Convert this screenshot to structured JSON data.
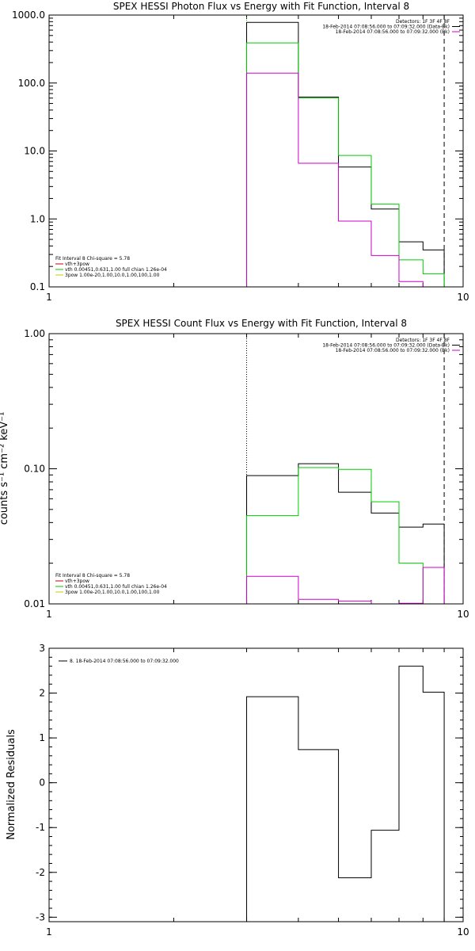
{
  "chart_data": [
    {
      "type": "step",
      "title": "SPEX HESSI Photon Flux vs Energy with Fit Function, Interval 8",
      "xlabel": "",
      "ylabel": "",
      "xscale": "log",
      "yscale": "log",
      "xlim": [
        1,
        10
      ],
      "ylim": [
        0.1,
        1000
      ],
      "xticks": [
        {
          "v": 1,
          "label": "1"
        },
        {
          "v": 10,
          "label": "10"
        }
      ],
      "yticks": [
        {
          "v": 0.1,
          "label": "0.1"
        },
        {
          "v": 1,
          "label": "1.0"
        },
        {
          "v": 10,
          "label": "10.0"
        },
        {
          "v": 100,
          "label": "100.0"
        },
        {
          "v": 1000,
          "label": "1000.0"
        }
      ],
      "vlines": [
        {
          "x": 3.0,
          "style": "dotted",
          "color": "#00cc00"
        },
        {
          "x": 9.0,
          "style": "dashed",
          "color": "#000000"
        }
      ],
      "legend_topright": {
        "detectors": "Detectors: 1F 3F 4F 8F",
        "entries": [
          {
            "text": "18-Feb-2014 07:08:56.000 to 07:09:32.000 (Data-Bk)",
            "color": "#000000"
          },
          {
            "text": "18-Feb-2014 07:08:56.000 to 07:09:32.000 (Bk)",
            "color": "#cc00cc"
          }
        ]
      },
      "legend_bottomleft": {
        "header": "Fit Interval 8   Chi-square = 5.78",
        "entries": [
          {
            "text": "vth+3pow",
            "color": "#cc0000"
          },
          {
            "text": "vth 0.00451,0.631,1.00   full chian 1.26e-04",
            "color": "#00cc00"
          },
          {
            "text": "3pow 1.00e-20,1.00,10.0,1.00,100,1.00",
            "color": "#cccc00"
          }
        ]
      },
      "edges": [
        3,
        4,
        5,
        6,
        7,
        8,
        9
      ],
      "series": [
        {
          "name": "Data-Bk",
          "color": "#000000",
          "values": [
            780,
            62,
            5.8,
            1.4,
            0.46,
            0.35
          ]
        },
        {
          "name": "vth",
          "color": "#00cc00",
          "values": [
            390,
            60,
            8.6,
            1.65,
            0.25,
            0.155
          ]
        },
        {
          "name": "Bk",
          "color": "#cc00cc",
          "values": [
            140,
            6.6,
            0.93,
            0.29,
            0.12,
            0.1
          ]
        }
      ]
    },
    {
      "type": "step",
      "title": "SPEX HESSI Count Flux vs Energy with Fit Function, Interval 8",
      "xlabel": "",
      "ylabel": "counts s⁻¹ cm⁻² keV⁻¹",
      "xscale": "log",
      "yscale": "log",
      "xlim": [
        1,
        10
      ],
      "ylim": [
        0.01,
        1
      ],
      "xticks": [
        {
          "v": 1,
          "label": "1"
        },
        {
          "v": 10,
          "label": "10"
        }
      ],
      "yticks": [
        {
          "v": 0.01,
          "label": "0.01"
        },
        {
          "v": 0.1,
          "label": "0.10"
        },
        {
          "v": 1,
          "label": "1.00"
        }
      ],
      "vlines": [
        {
          "x": 3.0,
          "style": "dotted",
          "color": "#000000"
        },
        {
          "x": 9.0,
          "style": "dashed",
          "color": "#000000"
        }
      ],
      "legend_topright": {
        "detectors": "Detectors: 1F 3F 4F 8F",
        "entries": [
          {
            "text": "18-Feb-2014 07:08:56.000 to 07:09:32.000 (Data-Bk)",
            "color": "#000000"
          },
          {
            "text": "18-Feb-2014 07:08:56.000 to 07:09:32.000 (Bk)",
            "color": "#cc00cc"
          }
        ]
      },
      "legend_bottomleft": {
        "header": "Fit Interval 8   Chi-square = 5.78",
        "entries": [
          {
            "text": "vth+3pow",
            "color": "#cc0000"
          },
          {
            "text": "vth 0.00451,0.631,1.00   full chian 1.26e-04",
            "color": "#00cc00"
          },
          {
            "text": "3pow 1.00e-20,1.00,10.0,1.00,100,1.00",
            "color": "#cccc00"
          }
        ]
      },
      "edges": [
        3,
        4,
        5,
        6,
        7,
        8,
        9
      ],
      "series": [
        {
          "name": "Data-Bk",
          "color": "#000000",
          "values": [
            0.089,
            0.109,
            0.067,
            0.047,
            0.037,
            0.039
          ]
        },
        {
          "name": "vth",
          "color": "#00cc00",
          "values": [
            0.045,
            0.102,
            0.099,
            0.057,
            0.02,
            0.01
          ]
        },
        {
          "name": "Bk",
          "color": "#cc00cc",
          "values": [
            0.016,
            0.0108,
            0.0105,
            0.01,
            0.0101,
            0.0186
          ]
        }
      ]
    },
    {
      "type": "step",
      "title": "",
      "xlabel": "",
      "ylabel": "Normalized Residuals",
      "xscale": "log",
      "yscale": "linear",
      "xlim": [
        1,
        10
      ],
      "ylim": [
        -3.1,
        3
      ],
      "xticks": [
        {
          "v": 1,
          "label": "1"
        },
        {
          "v": 10,
          "label": "10"
        }
      ],
      "yticks": [
        {
          "v": -3,
          "label": "-3"
        },
        {
          "v": -2,
          "label": "-2"
        },
        {
          "v": -1,
          "label": "-1"
        },
        {
          "v": 0,
          "label": "0"
        },
        {
          "v": 1,
          "label": "1"
        },
        {
          "v": 2,
          "label": "2"
        },
        {
          "v": 3,
          "label": "3"
        }
      ],
      "legend_topleft": {
        "entries": [
          {
            "text": "8. 18-Feb-2014 07:08:56.000 to 07:09:32.000",
            "color": "#000000"
          }
        ]
      },
      "edges": [
        3,
        4,
        5,
        6,
        7,
        8,
        9
      ],
      "series": [
        {
          "name": "residuals",
          "color": "#000000",
          "values": [
            1.92,
            0.74,
            -2.12,
            -1.06,
            2.6,
            2.02
          ]
        }
      ]
    }
  ]
}
